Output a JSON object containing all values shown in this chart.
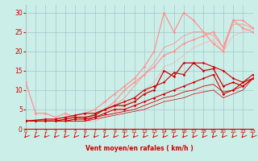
{
  "background_color": "#cceee8",
  "grid_color": "#a0c8c8",
  "xlabel": "Vent moyen/en rafales ( km/h )",
  "xlabel_color": "#cc0000",
  "tick_color": "#cc0000",
  "arrow_color": "#cc0000",
  "xlim": [
    0,
    23
  ],
  "ylim": [
    0,
    32
  ],
  "yticks": [
    0,
    5,
    10,
    15,
    20,
    25,
    30
  ],
  "xticks": [
    0,
    1,
    2,
    3,
    4,
    5,
    6,
    7,
    8,
    9,
    10,
    11,
    12,
    13,
    14,
    15,
    16,
    17,
    18,
    19,
    20,
    21,
    22,
    23
  ],
  "series": [
    {
      "x": [
        0,
        1,
        2,
        3,
        4,
        5,
        6,
        7,
        8,
        9,
        10,
        11,
        12,
        13,
        14,
        15,
        16,
        17,
        18,
        19,
        20,
        21,
        22,
        23
      ],
      "y": [
        2,
        2,
        2,
        2,
        2,
        2.5,
        2.5,
        3,
        4,
        5,
        5,
        6,
        7,
        8,
        9,
        10,
        11,
        12,
        13,
        14,
        9,
        10,
        12,
        13
      ],
      "color": "#cc0000",
      "lw": 0.8,
      "marker": "D",
      "ms": 1.8,
      "zorder": 5
    },
    {
      "x": [
        0,
        1,
        2,
        3,
        4,
        5,
        6,
        7,
        8,
        9,
        10,
        11,
        12,
        13,
        14,
        15,
        16,
        17,
        18,
        19,
        20,
        21,
        22,
        23
      ],
      "y": [
        2,
        2,
        2,
        2,
        2.5,
        3,
        3,
        3.5,
        5,
        6,
        6,
        7,
        9,
        10,
        15,
        13.5,
        17,
        17,
        15,
        15.5,
        11,
        12,
        11,
        13
      ],
      "color": "#cc0000",
      "lw": 0.9,
      "marker": "D",
      "ms": 1.8,
      "zorder": 5
    },
    {
      "x": [
        0,
        2,
        3,
        4,
        5,
        6,
        7,
        8,
        9,
        10,
        11,
        12,
        13,
        14,
        15,
        16,
        17,
        18,
        19,
        20,
        21,
        22,
        23
      ],
      "y": [
        2,
        2.5,
        2.5,
        3,
        3.5,
        4,
        4,
        5,
        6,
        7,
        8,
        10,
        11,
        12,
        14.5,
        14,
        17,
        17,
        16,
        15,
        13,
        12,
        14
      ],
      "color": "#cc0000",
      "lw": 0.8,
      "marker": "D",
      "ms": 1.8,
      "zorder": 5
    },
    {
      "x": [
        0,
        1,
        2,
        3,
        4,
        5,
        6,
        7,
        8,
        9,
        10,
        11,
        12,
        13,
        14,
        15,
        16,
        17,
        18,
        19,
        20,
        21,
        22,
        23
      ],
      "y": [
        2,
        2,
        2,
        2,
        2,
        2,
        2,
        3,
        3.5,
        4,
        4.5,
        5,
        6,
        7,
        8,
        8.5,
        9.5,
        10,
        11,
        11.5,
        9.5,
        10,
        11,
        13
      ],
      "color": "#cc0000",
      "lw": 0.6,
      "marker": null,
      "ms": 0,
      "zorder": 3
    },
    {
      "x": [
        0,
        1,
        2,
        3,
        4,
        5,
        6,
        7,
        8,
        9,
        10,
        11,
        12,
        13,
        14,
        15,
        16,
        17,
        18,
        19,
        20,
        21,
        22,
        23
      ],
      "y": [
        2,
        2,
        2,
        2,
        2,
        2,
        2,
        2.5,
        3,
        3.5,
        4,
        4.5,
        5,
        6,
        7,
        7.5,
        8,
        9,
        9.5,
        10,
        8,
        9,
        10,
        13
      ],
      "color": "#cc0000",
      "lw": 0.5,
      "marker": null,
      "ms": 0,
      "zorder": 3
    },
    {
      "x": [
        0,
        1,
        2,
        3,
        4,
        5,
        6,
        7,
        8,
        9,
        10,
        11,
        12,
        13,
        14,
        15,
        16,
        17,
        18,
        19,
        20,
        21,
        22,
        23
      ],
      "y": [
        12,
        4,
        4,
        3,
        4,
        3,
        2.5,
        4,
        5,
        7,
        10,
        12,
        14,
        16,
        19,
        20,
        22,
        23,
        24,
        25,
        21,
        28,
        26,
        25
      ],
      "color": "#ff9090",
      "lw": 0.9,
      "marker": "D",
      "ms": 1.8,
      "zorder": 4
    },
    {
      "x": [
        0,
        1,
        2,
        3,
        4,
        5,
        6,
        7,
        8,
        9,
        10,
        11,
        12,
        13,
        14,
        15,
        16,
        17,
        18,
        19,
        20,
        21,
        22,
        23
      ],
      "y": [
        2,
        2,
        2,
        2.5,
        3,
        3.5,
        4,
        5,
        7,
        9,
        11,
        13,
        16,
        20,
        30,
        25,
        30,
        28,
        25,
        22,
        20,
        28,
        28,
        26
      ],
      "color": "#ff9090",
      "lw": 0.9,
      "marker": "D",
      "ms": 1.8,
      "zorder": 4
    },
    {
      "x": [
        0,
        1,
        2,
        3,
        4,
        5,
        6,
        7,
        8,
        9,
        10,
        11,
        12,
        13,
        14,
        15,
        16,
        17,
        18,
        19,
        20,
        21,
        22,
        23
      ],
      "y": [
        2,
        2,
        2,
        2,
        2,
        2,
        2,
        2.5,
        4,
        6,
        8,
        11,
        14,
        17,
        21,
        22,
        24,
        25,
        25,
        24,
        21,
        27,
        27,
        26
      ],
      "color": "#ff9090",
      "lw": 0.6,
      "marker": null,
      "ms": 0,
      "zorder": 2
    },
    {
      "x": [
        0,
        1,
        2,
        3,
        4,
        5,
        6,
        7,
        8,
        9,
        10,
        11,
        12,
        13,
        14,
        15,
        16,
        17,
        18,
        19,
        20,
        21,
        22,
        23
      ],
      "y": [
        2,
        2,
        2,
        2,
        2,
        2,
        2,
        2,
        3,
        4,
        6,
        8,
        10,
        12,
        16,
        17,
        19,
        21,
        22,
        23,
        20,
        24,
        25,
        26
      ],
      "color": "#ffaaaa",
      "lw": 0.5,
      "marker": null,
      "ms": 0,
      "zorder": 2
    }
  ]
}
